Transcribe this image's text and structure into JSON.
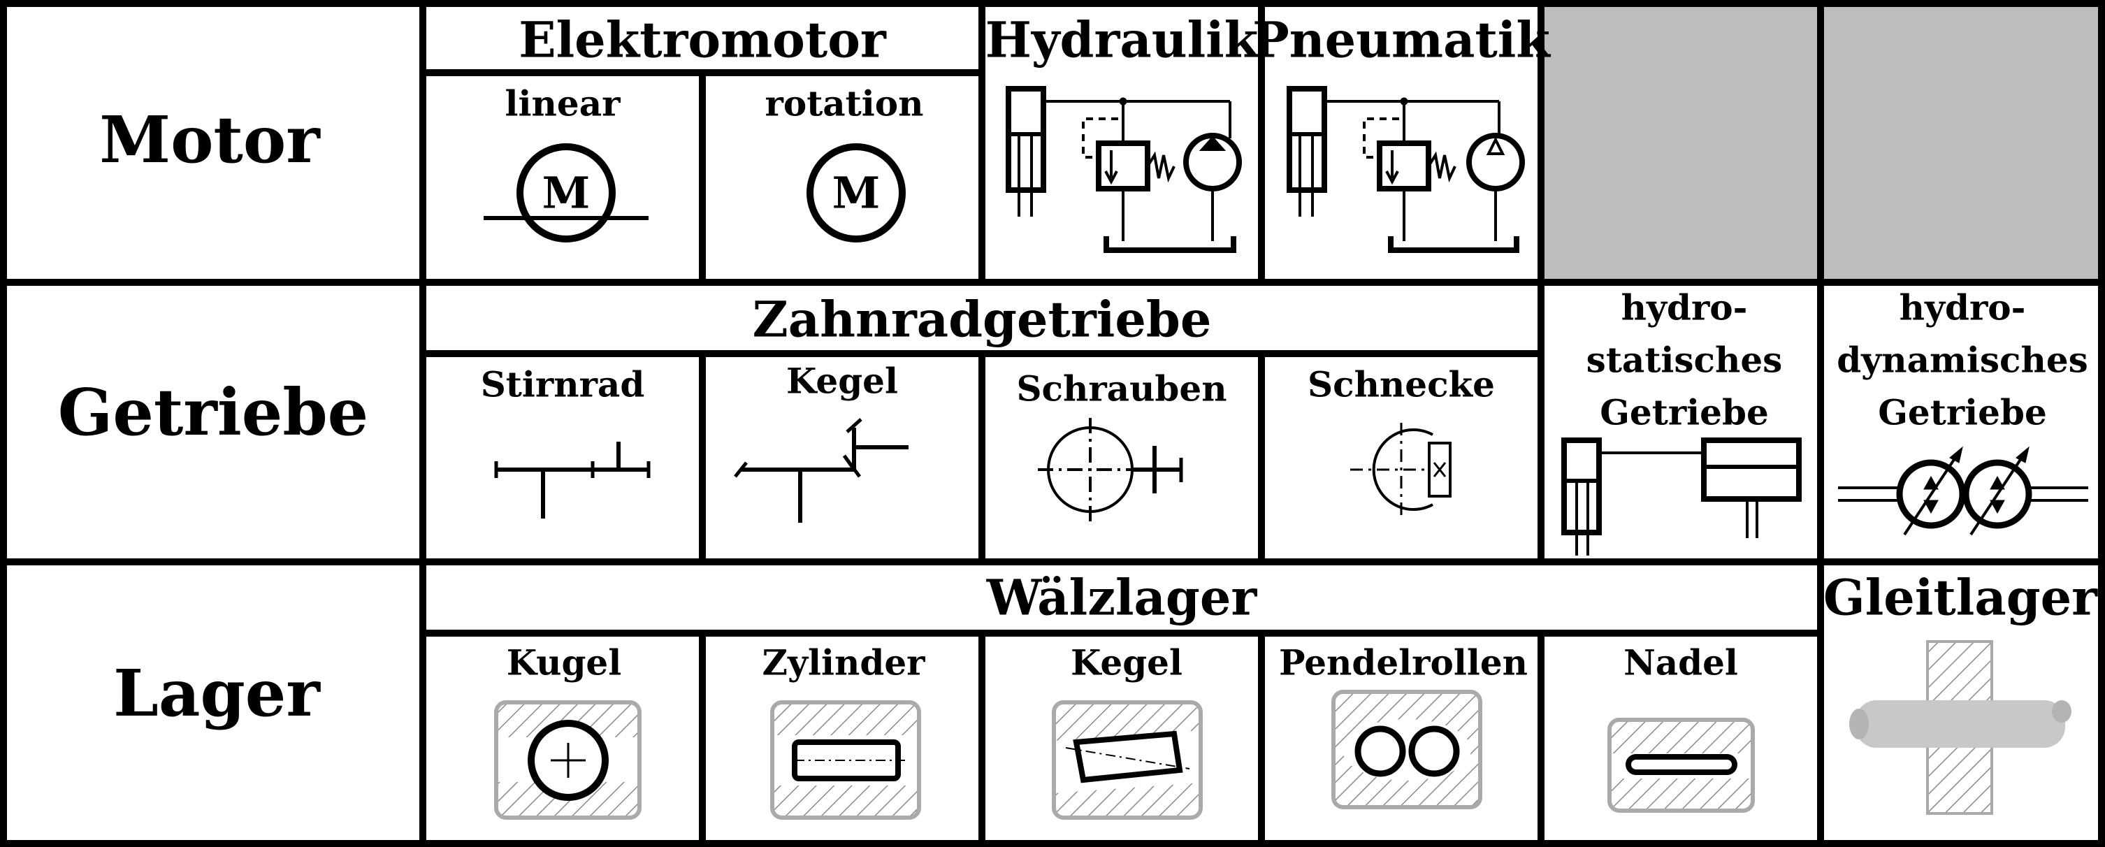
{
  "rows": {
    "motor": "Motor",
    "getriebe": "Getriebe",
    "lager": "Lager"
  },
  "motor": {
    "elektromotor": "Elektromotor",
    "linear": "linear",
    "rotation": "rotation",
    "motor_symbol": "M",
    "hydraulik": "Hydraulik",
    "pneumatik": "Pneumatik"
  },
  "getriebe": {
    "zahnrad": "Zahnradgetriebe",
    "stirnrad": "Stirnrad",
    "kegel": "Kegel",
    "schrauben": "Schrauben",
    "schnecke": "Schnecke",
    "hydrostatisch": [
      "hydro-",
      "statisches",
      "Getriebe"
    ],
    "hydrodynamisch": [
      "hydro-",
      "dynamisches",
      "Getriebe"
    ]
  },
  "lager": {
    "waelzlager": "Wälzlager",
    "kugel": "Kugel",
    "zylinder": "Zylinder",
    "kegel": "Kegel",
    "pendelrollen": "Pendelrollen",
    "nadel": "Nadel",
    "gleitlager": "Gleitlager"
  },
  "colors": {
    "line": "#000000",
    "empty_cell": "#bdbdbd",
    "bearing_housing": "#aaaaaa",
    "shaft": "#c8c8c8"
  }
}
